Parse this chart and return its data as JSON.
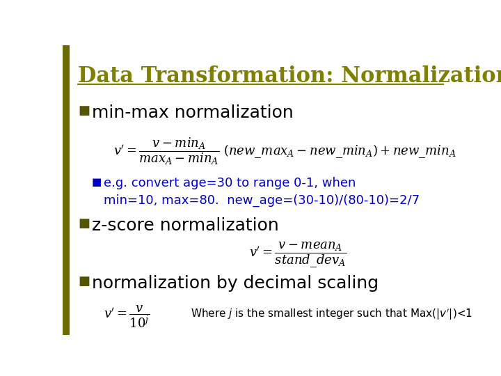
{
  "bg_color": "#FFFFFF",
  "left_bar_color_hex": "#6B6B00",
  "title": "Data Transformation: Normalization",
  "title_color": "#808000",
  "title_fontsize": 22,
  "bullet1_text": "min-max normalization",
  "bullet1_fontsize": 18,
  "sub1_text": "e.g. convert age=30 to range 0-1, when\nmin=10, max=80.  new_age=(30-10)/(80-10)=2/7",
  "sub1_color": "#0000CC",
  "sub1_fontsize": 13,
  "bullet2_text": "z-score normalization",
  "bullet2_fontsize": 18,
  "formula2_color": "#000000",
  "bullet3_text": "normalization by decimal scaling",
  "bullet3_fontsize": 18,
  "formula3_color": "#000000",
  "formula3_note": "Where $j$ is the smallest integer such that Max(|$v'$|)<1",
  "formula3_note_color": "#000000",
  "formula3_note_fontsize": 11,
  "left_bar_width": 0.018
}
